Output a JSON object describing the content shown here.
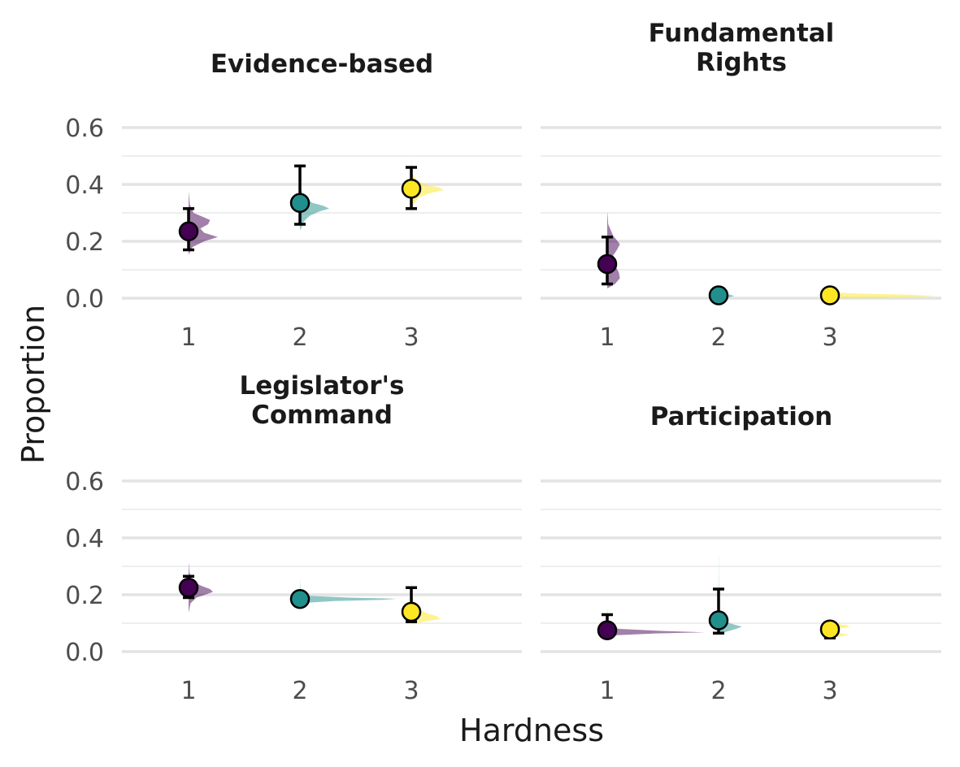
{
  "chart_data": {
    "type": "scatter",
    "xlabel": "Hardness",
    "ylabel": "Proportion",
    "x_ticks": [
      "1",
      "2",
      "3"
    ],
    "y_ticks": [
      "0.0",
      "0.2",
      "0.4",
      "0.6"
    ],
    "ylim": [
      -0.06,
      0.64
    ],
    "grid": true,
    "colors": {
      "1": "#440154",
      "2": "#21908C",
      "3": "#FDE725"
    },
    "panels": [
      {
        "title": "Evidence-based",
        "points": [
          {
            "x": 1,
            "y": 0.235,
            "lo": 0.17,
            "hi": 0.315
          },
          {
            "x": 2,
            "y": 0.335,
            "lo": 0.26,
            "hi": 0.465
          },
          {
            "x": 3,
            "y": 0.385,
            "lo": 0.315,
            "hi": 0.46
          }
        ],
        "densities": [
          {
            "x": 1,
            "y": [
              0.155,
              0.18,
              0.2,
              0.215,
              0.23,
              0.245,
              0.26,
              0.275,
              0.3,
              0.33,
              0.37
            ],
            "w": [
              0.004,
              0.04,
              0.16,
              0.3,
              0.16,
              0.12,
              0.2,
              0.22,
              0.05,
              0.012,
              0.002
            ]
          },
          {
            "x": 2,
            "y": [
              0.24,
              0.27,
              0.29,
              0.305,
              0.315,
              0.325,
              0.335,
              0.35,
              0.38,
              0.42,
              0.46
            ],
            "w": [
              0.004,
              0.04,
              0.1,
              0.2,
              0.3,
              0.24,
              0.13,
              0.05,
              0.012,
              0.004,
              0.001
            ]
          },
          {
            "x": 3,
            "y": [
              0.3,
              0.33,
              0.355,
              0.37,
              0.38,
              0.39,
              0.4,
              0.415,
              0.44,
              0.47,
              0.5
            ],
            "w": [
              0.003,
              0.02,
              0.08,
              0.2,
              0.33,
              0.28,
              0.14,
              0.05,
              0.012,
              0.004,
              0.001
            ]
          }
        ]
      },
      {
        "title": "Fundamental\nRights",
        "points": [
          {
            "x": 1,
            "y": 0.12,
            "lo": 0.05,
            "hi": 0.215
          },
          {
            "x": 2,
            "y": 0.01,
            "lo": 0.01,
            "hi": 0.01
          },
          {
            "x": 3,
            "y": 0.01,
            "lo": 0.01,
            "hi": 0.01
          }
        ],
        "densities": [
          {
            "x": 1,
            "y": [
              0.035,
              0.05,
              0.07,
              0.09,
              0.11,
              0.13,
              0.15,
              0.17,
              0.19,
              0.22,
              0.26,
              0.3
            ],
            "w": [
              0.005,
              0.08,
              0.13,
              0.12,
              0.09,
              0.07,
              0.06,
              0.1,
              0.13,
              0.06,
              0.01,
              0.002
            ]
          },
          {
            "x": 2,
            "y": [
              0.0,
              0.004,
              0.008,
              0.012,
              0.016,
              0.022,
              0.03
            ],
            "w": [
              0.04,
              0.12,
              0.16,
              0.12,
              0.06,
              0.02,
              0.004
            ]
          },
          {
            "x": 3,
            "y": [
              0.0,
              0.004,
              0.008,
              0.012,
              0.016,
              0.02
            ],
            "w": [
              0.3,
              0.9,
              1.1,
              0.8,
              0.3,
              0.05
            ]
          }
        ]
      },
      {
        "title": "Legislator's\nCommand",
        "points": [
          {
            "x": 1,
            "y": 0.225,
            "lo": 0.19,
            "hi": 0.265
          },
          {
            "x": 2,
            "y": 0.185,
            "lo": 0.185,
            "hi": 0.185
          },
          {
            "x": 3,
            "y": 0.14,
            "lo": 0.105,
            "hi": 0.225
          }
        ],
        "densities": [
          {
            "x": 1,
            "y": [
              0.14,
              0.17,
              0.19,
              0.2,
              0.21,
              0.22,
              0.23,
              0.24,
              0.255,
              0.28,
              0.31
            ],
            "w": [
              0.002,
              0.02,
              0.08,
              0.17,
              0.25,
              0.22,
              0.14,
              0.08,
              0.03,
              0.008,
              0.002
            ]
          },
          {
            "x": 2,
            "y": [
              0.165,
              0.172,
              0.178,
              0.182,
              0.186,
              0.19,
              0.196,
              0.205,
              0.22,
              0.25
            ],
            "w": [
              0.005,
              0.08,
              0.35,
              0.85,
              1.0,
              0.5,
              0.1,
              0.02,
              0.004,
              0.001
            ]
          },
          {
            "x": 3,
            "y": [
              0.095,
              0.105,
              0.115,
              0.125,
              0.135,
              0.15,
              0.17,
              0.2,
              0.25
            ],
            "w": [
              0.005,
              0.12,
              0.3,
              0.26,
              0.16,
              0.08,
              0.03,
              0.01,
              0.002
            ]
          }
        ]
      },
      {
        "title": "Participation",
        "points": [
          {
            "x": 1,
            "y": 0.075,
            "lo": 0.06,
            "hi": 0.13
          },
          {
            "x": 2,
            "y": 0.11,
            "lo": 0.065,
            "hi": 0.22
          },
          {
            "x": 3,
            "y": 0.078,
            "lo": 0.048,
            "hi": 0.1
          }
        ],
        "densities": [
          {
            "x": 1,
            "y": [
              0.05,
              0.058,
              0.064,
              0.068,
              0.073,
              0.08,
              0.09,
              0.1,
              0.12,
              0.15
            ],
            "w": [
              0.005,
              0.1,
              0.5,
              1.0,
              0.55,
              0.12,
              0.02,
              0.006,
              0.002,
              0.001
            ]
          },
          {
            "x": 2,
            "y": [
              0.06,
              0.07,
              0.08,
              0.088,
              0.095,
              0.105,
              0.12,
              0.15,
              0.2,
              0.26,
              0.34
            ],
            "w": [
              0.01,
              0.08,
              0.18,
              0.24,
              0.16,
              0.07,
              0.025,
              0.01,
              0.004,
              0.002,
              0.001
            ]
          },
          {
            "x": 3,
            "y": [
              0.05,
              0.058,
              0.066,
              0.074,
              0.08,
              0.086,
              0.092,
              0.1,
              0.11
            ],
            "w": [
              0.02,
              0.2,
              0.1,
              0.04,
              0.06,
              0.2,
              0.18,
              0.04,
              0.004
            ]
          }
        ]
      }
    ]
  }
}
